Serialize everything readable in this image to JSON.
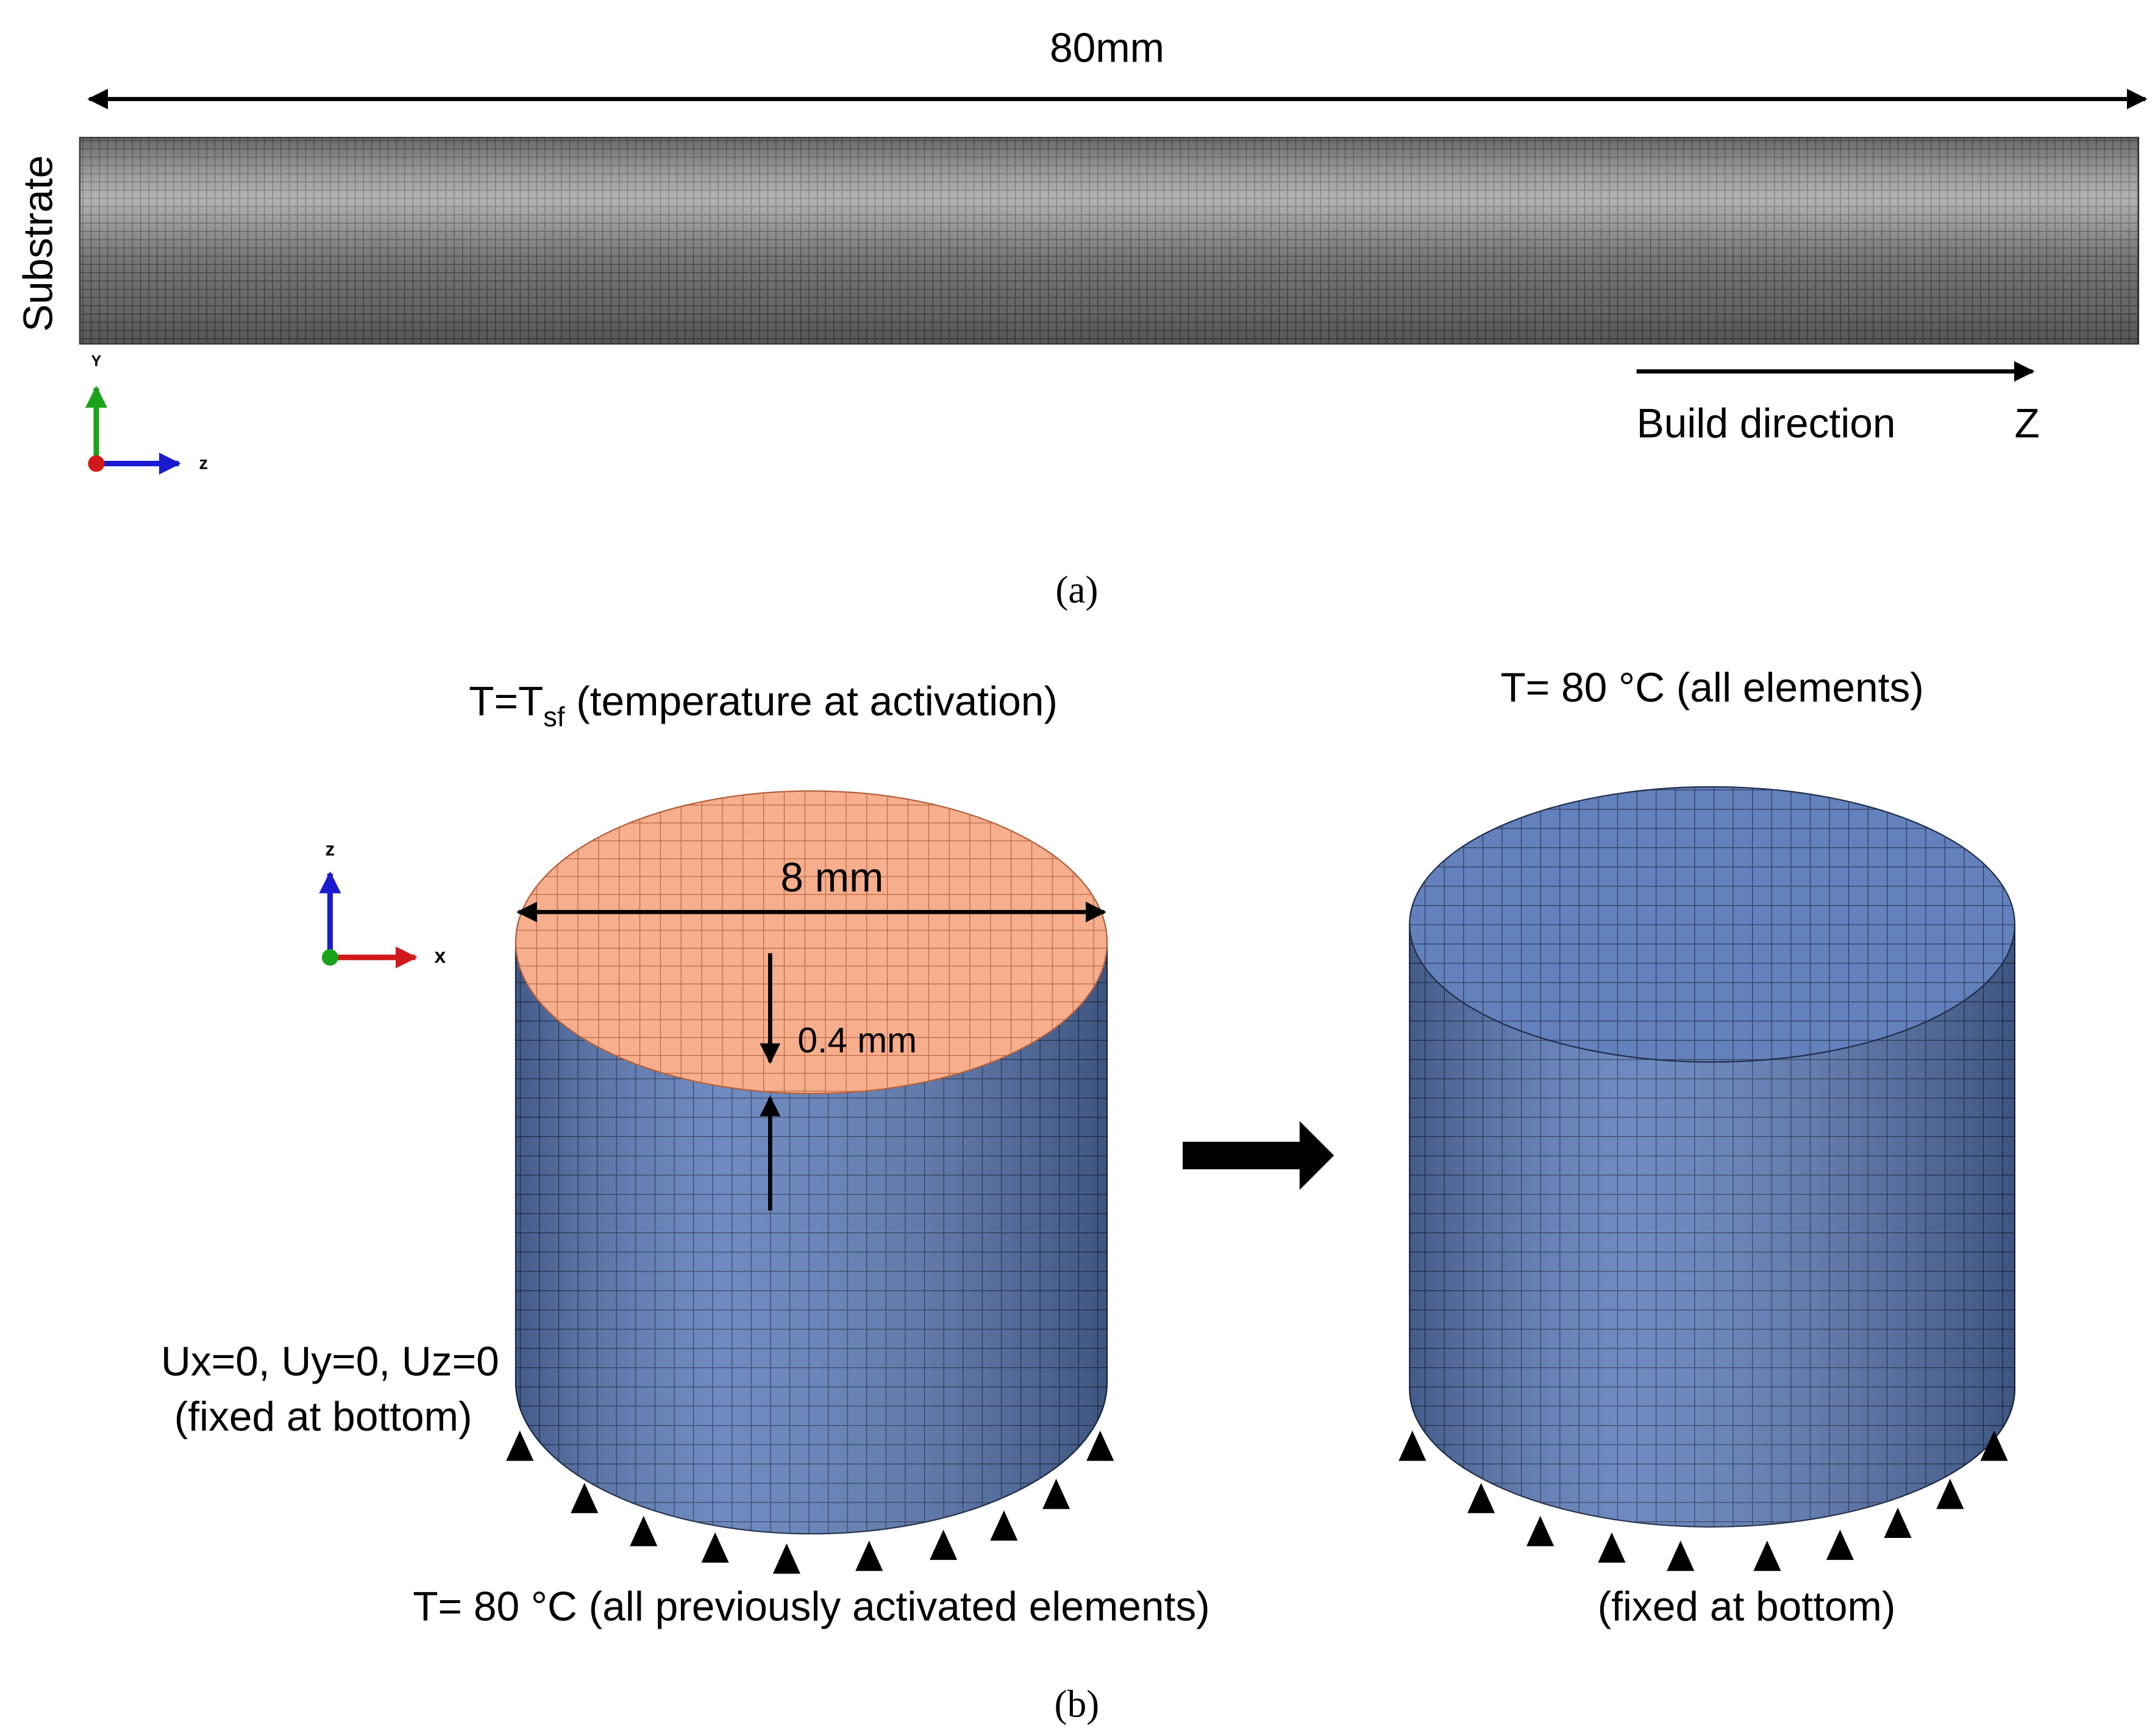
{
  "panel_a": {
    "dimension": "80mm",
    "side_label": "Substrate",
    "axis_up": "Y",
    "axis_right": "z",
    "build_direction": "Build direction",
    "build_axis": "Z",
    "caption": "(a)"
  },
  "panel_b": {
    "left_title": {
      "main": "T=T",
      "subscript": "sf",
      "rest": " (temperature at activation)"
    },
    "diameter": "8 mm",
    "layer_height": "0.4 mm",
    "axis_up": "z",
    "axis_right": "x",
    "boundary_line1": "Ux=0, Uy=0, Uz=0",
    "boundary_line2": "(fixed at bottom)",
    "left_bottom": "T= 80 °C (all previously activated elements)",
    "right_title": "T= 80 °C (all elements)",
    "right_bottom": "(fixed at bottom)",
    "caption": "(b)"
  }
}
